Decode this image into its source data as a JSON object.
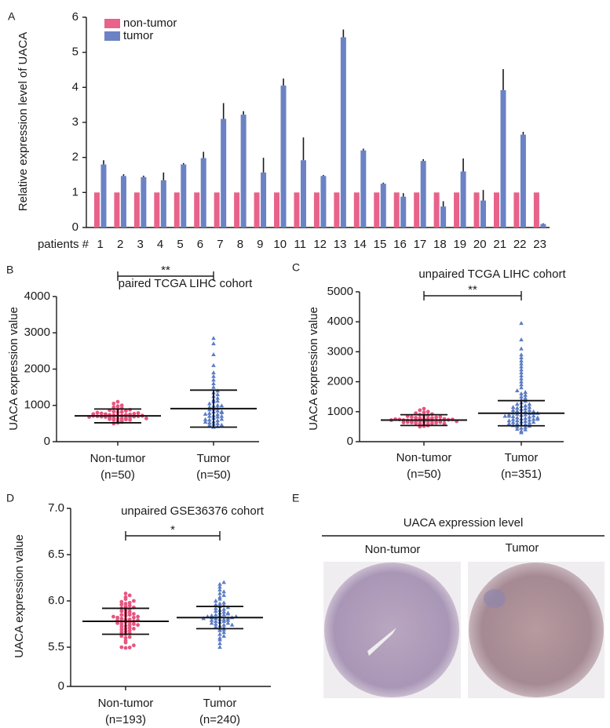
{
  "chart_data": [
    {
      "type": "bar",
      "panel": "A",
      "ylabel": "Relative expression level of UACA",
      "x_label": "patients #",
      "categories": [
        "1",
        "2",
        "3",
        "4",
        "5",
        "6",
        "7",
        "8",
        "9",
        "10",
        "11",
        "12",
        "13",
        "14",
        "15",
        "16",
        "17",
        "18",
        "19",
        "20",
        "21",
        "22",
        "23"
      ],
      "series": [
        {
          "name": "non-tumor",
          "color": "#e8628a",
          "values": [
            1,
            1,
            1,
            1,
            1,
            1,
            1,
            1,
            1,
            1,
            1,
            1,
            1,
            1,
            1,
            1,
            1,
            1,
            1,
            1,
            1,
            1,
            1
          ]
        },
        {
          "name": "tumor",
          "color": "#6b82c4",
          "values": [
            1.8,
            1.47,
            1.44,
            1.35,
            1.8,
            1.98,
            3.1,
            3.22,
            1.57,
            4.05,
            1.92,
            1.47,
            5.43,
            2.2,
            1.25,
            0.88,
            1.9,
            0.6,
            1.6,
            0.77,
            3.92,
            2.65,
            0.1
          ],
          "errors": [
            0.12,
            0.05,
            0.04,
            0.22,
            0.04,
            0.18,
            0.45,
            0.1,
            0.42,
            0.2,
            0.65,
            0.03,
            0.22,
            0.05,
            0.03,
            0.1,
            0.05,
            0.15,
            0.37,
            0.3,
            0.6,
            0.08,
            0.02
          ]
        }
      ],
      "ylim": [
        0,
        6
      ],
      "yticks": [
        0,
        1,
        2,
        3,
        4,
        5,
        6
      ],
      "legend": "top-left"
    },
    {
      "type": "dotplot",
      "panel": "B",
      "title": "paired TCGA LIHC cohort",
      "ylabel": "UACA expression value",
      "categories": [
        "Non-tumor",
        "Tumor"
      ],
      "category_notes": [
        "(n=50)",
        "(n=50)"
      ],
      "significance": "**",
      "ylim": [
        0,
        4000
      ],
      "yticks": [
        0,
        1000,
        2000,
        3000,
        4000
      ],
      "groups": [
        {
          "color": "#e8557f",
          "marker": "circle",
          "mean": 710,
          "sd": 190,
          "points": [
            520,
            560,
            580,
            600,
            610,
            620,
            630,
            640,
            650,
            650,
            660,
            670,
            680,
            690,
            690,
            700,
            700,
            710,
            710,
            720,
            720,
            730,
            740,
            740,
            750,
            760,
            770,
            780,
            790,
            800,
            810,
            820,
            830,
            850,
            870,
            880,
            900,
            920,
            950,
            980,
            1000,
            1050,
            1100,
            600,
            640,
            680,
            720,
            760,
            540,
            500
          ]
        },
        {
          "color": "#5b7cc4",
          "marker": "triangle",
          "mean": 910,
          "sd": 510,
          "points": [
            400,
            420,
            450,
            480,
            500,
            520,
            550,
            580,
            600,
            620,
            650,
            680,
            700,
            720,
            750,
            780,
            800,
            820,
            850,
            880,
            900,
            920,
            950,
            980,
            1000,
            1050,
            1100,
            1150,
            1200,
            1250,
            1300,
            1350,
            1400,
            1500,
            1600,
            1700,
            1800,
            1900,
            2100,
            2400,
            2700,
            2850,
            460,
            540,
            610,
            700,
            760,
            830,
            990,
            1120
          ]
        }
      ]
    },
    {
      "type": "dotplot",
      "panel": "C",
      "title": "unpaired TCGA LIHC cohort",
      "ylabel": "UACA expression value",
      "categories": [
        "Non-tumor",
        "Tumor"
      ],
      "category_notes": [
        "(n=50)",
        "(n=351)"
      ],
      "significance": "**",
      "ylim": [
        0,
        5000
      ],
      "yticks": [
        0,
        1000,
        2000,
        3000,
        4000,
        5000
      ],
      "groups": [
        {
          "color": "#e8557f",
          "marker": "circle",
          "mean": 720,
          "sd": 180,
          "points": [
            520,
            560,
            580,
            600,
            610,
            620,
            630,
            640,
            650,
            650,
            660,
            670,
            680,
            690,
            690,
            700,
            700,
            710,
            710,
            720,
            720,
            730,
            740,
            740,
            750,
            760,
            770,
            780,
            790,
            800,
            810,
            820,
            830,
            850,
            870,
            880,
            900,
            920,
            950,
            980,
            1000,
            1050,
            1100,
            600,
            640,
            680,
            720,
            760,
            540,
            500
          ]
        },
        {
          "color": "#5b7cc4",
          "marker": "triangle",
          "mean": 950,
          "sd": 420,
          "points": [
            300,
            350,
            400,
            420,
            450,
            480,
            500,
            520,
            540,
            560,
            580,
            600,
            620,
            640,
            660,
            680,
            700,
            720,
            740,
            760,
            780,
            800,
            820,
            840,
            860,
            880,
            900,
            920,
            940,
            960,
            980,
            1000,
            1020,
            1050,
            1080,
            1100,
            1120,
            1150,
            1180,
            1200,
            1250,
            1300,
            1350,
            1400,
            1450,
            1500,
            1550,
            1600,
            1650,
            1700,
            1800,
            1900,
            2000,
            2100,
            2200,
            2300,
            2400,
            2500,
            2600,
            2700,
            2800,
            2900,
            3100,
            3400,
            3950,
            650,
            750,
            850,
            950,
            1050,
            700,
            800,
            900,
            1000,
            600,
            750,
            850,
            1150,
            1250,
            950
          ]
        }
      ]
    },
    {
      "type": "dotplot",
      "panel": "D",
      "title": "unpaired GSE36376 cohort",
      "ylabel": "UACA expression value",
      "categories": [
        "Non-tumor",
        "Tumor"
      ],
      "category_notes": [
        "(n=193)",
        "(n=240)"
      ],
      "significance": "*",
      "ylim": [
        0,
        7
      ],
      "yticks": [
        0,
        5.5,
        {
          "value": 6,
          "label": "6.0"
        },
        6.5,
        {
          "value": 7,
          "label": "7.0"
        }
      ],
      "axis_break": true,
      "groups": [
        {
          "color": "#e8557f",
          "marker": "circle",
          "mean": 5.78,
          "sd": 0.14,
          "points": [
            5.4,
            5.45,
            5.5,
            5.52,
            5.55,
            5.57,
            5.6,
            5.61,
            5.62,
            5.64,
            5.65,
            5.66,
            5.67,
            5.68,
            5.69,
            5.7,
            5.71,
            5.72,
            5.73,
            5.74,
            5.75,
            5.75,
            5.76,
            5.77,
            5.77,
            5.78,
            5.78,
            5.79,
            5.79,
            5.8,
            5.8,
            5.81,
            5.82,
            5.82,
            5.83,
            5.84,
            5.85,
            5.85,
            5.86,
            5.87,
            5.88,
            5.89,
            5.9,
            5.91,
            5.92,
            5.93,
            5.94,
            5.95,
            5.96,
            5.97,
            5.98,
            5.99,
            6.0,
            6.02,
            6.04,
            6.06,
            6.08,
            5.74,
            5.83,
            5.7
          ]
        },
        {
          "color": "#5b7cc4",
          "marker": "triangle",
          "mean": 5.82,
          "sd": 0.12,
          "points": [
            5.5,
            5.54,
            5.58,
            5.6,
            5.62,
            5.64,
            5.66,
            5.68,
            5.69,
            5.7,
            5.71,
            5.72,
            5.73,
            5.74,
            5.75,
            5.76,
            5.77,
            5.78,
            5.78,
            5.79,
            5.8,
            5.8,
            5.81,
            5.81,
            5.82,
            5.82,
            5.83,
            5.83,
            5.84,
            5.85,
            5.85,
            5.86,
            5.87,
            5.88,
            5.89,
            5.9,
            5.91,
            5.92,
            5.93,
            5.94,
            5.95,
            5.96,
            5.97,
            5.98,
            6.0,
            6.02,
            6.04,
            6.06,
            6.08,
            6.1,
            6.12,
            6.15,
            6.18,
            6.2,
            5.76,
            5.84,
            5.79,
            5.87,
            5.74,
            5.81
          ]
        }
      ]
    },
    {
      "type": "image",
      "panel": "E",
      "title": "UACA expression level",
      "categories": [
        "Non-tumor",
        "Tumor"
      ]
    }
  ]
}
